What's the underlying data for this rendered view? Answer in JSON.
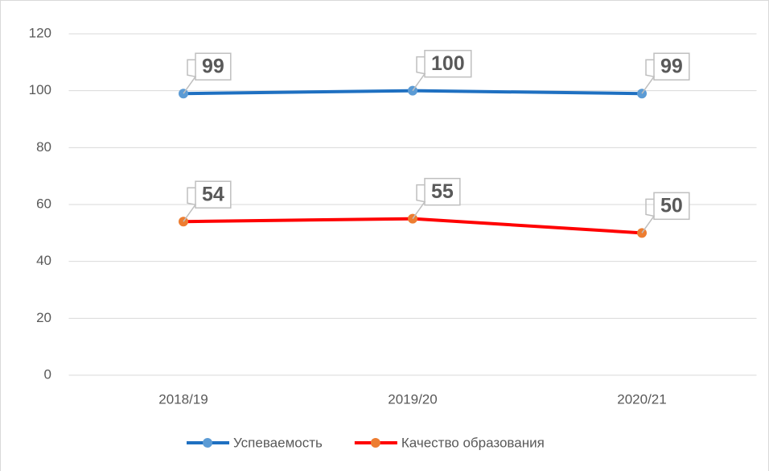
{
  "chart_data": {
    "type": "line",
    "categories": [
      "2018/19",
      "2019/20",
      "2020/21"
    ],
    "series": [
      {
        "name": "Успеваемость",
        "color": "#1f70c1",
        "marker_color": "#5b9bd5",
        "values": [
          99,
          100,
          99
        ]
      },
      {
        "name": "Качество образования",
        "color": "#ff0000",
        "marker_color": "#ed7d31",
        "values": [
          54,
          55,
          50
        ]
      }
    ],
    "ylim": [
      0,
      120
    ],
    "yticks": [
      0,
      20,
      40,
      60,
      80,
      100,
      120
    ],
    "grid": true,
    "legend": "bottom",
    "data_labels": true
  }
}
